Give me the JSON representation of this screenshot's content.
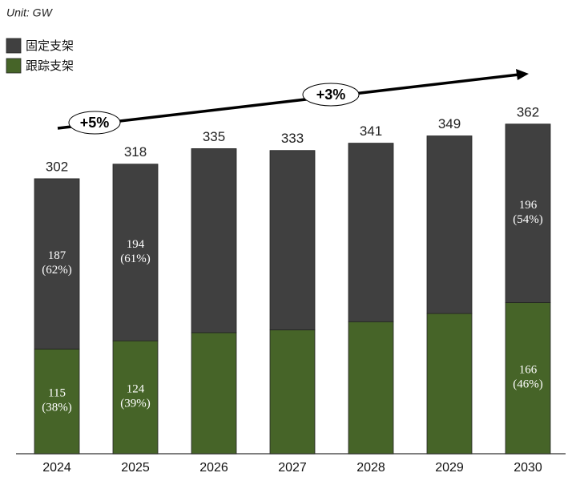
{
  "chart_data": {
    "type": "stacked_bar",
    "unit_note": "Unit: GW",
    "categories": [
      "2024",
      "2025",
      "2026",
      "2027",
      "2028",
      "2029",
      "2030"
    ],
    "series": [
      {
        "name": "跟踪支架",
        "color": "#466428",
        "values": [
          115,
          124,
          133,
          136,
          145,
          154,
          166
        ],
        "value_labels": [
          "115 (38%)",
          "124 (39%)",
          null,
          null,
          null,
          null,
          "166 (46%)"
        ]
      },
      {
        "name": "固定支架",
        "color": "#404040",
        "values": [
          187,
          194,
          202,
          197,
          196,
          195,
          196
        ],
        "value_labels": [
          "187 (62%)",
          "194 (61%)",
          null,
          null,
          null,
          null,
          "196 (54%)"
        ]
      }
    ],
    "totals": [
      302,
      318,
      335,
      333,
      341,
      349,
      362
    ],
    "annotations": [
      "+5%",
      "+3%"
    ],
    "legend": "top-left"
  }
}
